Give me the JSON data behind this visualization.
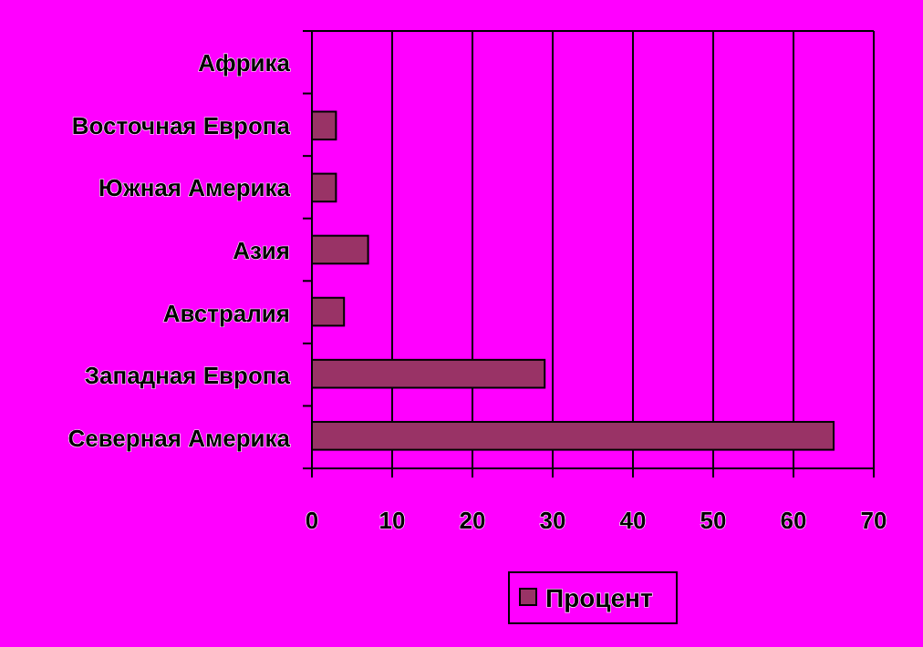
{
  "chart_data": {
    "type": "bar",
    "orientation": "horizontal",
    "categories": [
      "Африка",
      "Восточная Европа",
      "Южная Америка",
      "Азия",
      "Австралия",
      "Западная Европа",
      "Северная Америка"
    ],
    "series": [
      {
        "name": "Процент",
        "color": "#993366",
        "values": [
          0,
          3,
          3,
          7,
          4,
          29,
          65
        ]
      }
    ],
    "xlim": [
      0,
      70
    ],
    "xticks": [
      0,
      10,
      20,
      30,
      40,
      50,
      60,
      70
    ],
    "grid": "x",
    "legend": "bottom"
  }
}
